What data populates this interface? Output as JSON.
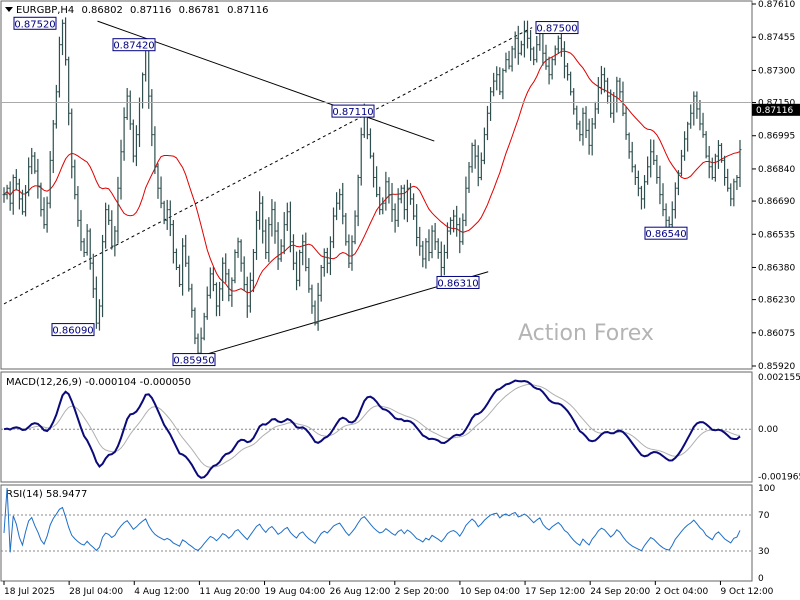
{
  "colors": {
    "candle": "#2f4f4f",
    "ma": "#e00000",
    "macd": "#0a0a7a",
    "signal": "#b0b0b0",
    "rsi": "#1e6fc8",
    "grid": "#888888",
    "label_border": "#000080",
    "label_text": "#000080",
    "watermark": "#b4b4b4"
  },
  "chart_data": [
    {
      "type": "candlestick",
      "title": "EURGBP,H4",
      "ohlc": [
        "0.86802",
        "0.87116",
        "0.86781",
        "0.87116"
      ],
      "watermark": "Action Forex",
      "ylim": [
        0.8592,
        0.8761
      ],
      "y_ticks": [
        "0.87610",
        "0.87455",
        "0.87300",
        "0.87150",
        "0.86995",
        "0.86840",
        "0.86690",
        "0.86535",
        "0.86380",
        "0.86230",
        "0.86075",
        "0.85920"
      ],
      "current_price": "0.87116",
      "price_line": "0.87150",
      "x_tick_labels": [
        "18 Jul 2025",
        "28 Jul 04:00",
        "4 Aug 12:00",
        "11 Aug 20:00",
        "19 Aug 04:00",
        "26 Aug 12:00",
        "2 Sep 20:00",
        "10 Sep 04:00",
        "17 Sep 12:00",
        "24 Sep 20:00",
        "2 Oct 04:00",
        "9 Oct 12:00"
      ],
      "bar_count": 250,
      "close": [
        0.8672,
        0.8675,
        0.8668,
        0.868,
        0.8677,
        0.867,
        0.8664,
        0.8673,
        0.8685,
        0.869,
        0.8683,
        0.8676,
        0.8665,
        0.8658,
        0.8668,
        0.8688,
        0.8705,
        0.872,
        0.8742,
        0.8752,
        0.8735,
        0.871,
        0.8685,
        0.8672,
        0.866,
        0.865,
        0.8645,
        0.8655,
        0.864,
        0.8628,
        0.8612,
        0.862,
        0.865,
        0.8665,
        0.866,
        0.8648,
        0.8655,
        0.8675,
        0.8692,
        0.8708,
        0.8718,
        0.8705,
        0.869,
        0.87,
        0.8715,
        0.8728,
        0.874,
        0.8718,
        0.87,
        0.8685,
        0.8675,
        0.8668,
        0.866,
        0.8665,
        0.8658,
        0.8645,
        0.8638,
        0.863,
        0.8648,
        0.864,
        0.8628,
        0.8618,
        0.8605,
        0.8598,
        0.8605,
        0.8615,
        0.8625,
        0.8635,
        0.863,
        0.862,
        0.8628,
        0.864,
        0.8635,
        0.8625,
        0.8632,
        0.8645,
        0.865,
        0.864,
        0.863,
        0.862,
        0.8632,
        0.8645,
        0.866,
        0.8668,
        0.8655,
        0.8645,
        0.8658,
        0.8665,
        0.8655,
        0.8642,
        0.8648,
        0.8658,
        0.8664,
        0.865,
        0.864,
        0.8632,
        0.8645,
        0.865,
        0.8638,
        0.8628,
        0.862,
        0.8612,
        0.8625,
        0.8638,
        0.8645,
        0.864,
        0.865,
        0.8662,
        0.8668,
        0.8672,
        0.8662,
        0.865,
        0.864,
        0.865,
        0.8662,
        0.868,
        0.87,
        0.8709,
        0.87,
        0.869,
        0.868,
        0.8672,
        0.8665,
        0.8668,
        0.8678,
        0.8672,
        0.8665,
        0.866,
        0.867,
        0.8675,
        0.8665,
        0.8675,
        0.867,
        0.8662,
        0.8652,
        0.8648,
        0.8642,
        0.865,
        0.8645,
        0.8655,
        0.865,
        0.8645,
        0.8638,
        0.8645,
        0.8655,
        0.866,
        0.8662,
        0.8658,
        0.865,
        0.866,
        0.8675,
        0.8685,
        0.8695,
        0.869,
        0.868,
        0.8688,
        0.87,
        0.871,
        0.872,
        0.8725,
        0.8728,
        0.872,
        0.873,
        0.8735,
        0.8732,
        0.874,
        0.8745,
        0.8738,
        0.8742,
        0.8748,
        0.8745,
        0.874,
        0.8735,
        0.8742,
        0.8748,
        0.8738,
        0.8732,
        0.8728,
        0.8735,
        0.874,
        0.8745,
        0.874,
        0.8732,
        0.8728,
        0.872,
        0.8712,
        0.8705,
        0.87,
        0.871,
        0.8702,
        0.8695,
        0.8705,
        0.8712,
        0.8722,
        0.8728,
        0.8725,
        0.8718,
        0.871,
        0.8715,
        0.8725,
        0.872,
        0.871,
        0.87,
        0.8692,
        0.8685,
        0.868,
        0.8675,
        0.867,
        0.8678,
        0.8685,
        0.8692,
        0.8688,
        0.868,
        0.8672,
        0.8665,
        0.866,
        0.8658,
        0.8665,
        0.8675,
        0.8682,
        0.869,
        0.8698,
        0.8705,
        0.871,
        0.8718,
        0.8712,
        0.8705,
        0.87,
        0.869,
        0.8685,
        0.868,
        0.869,
        0.8695,
        0.8688,
        0.868,
        0.8675,
        0.867,
        0.8678,
        0.868,
        0.8693
      ],
      "levels": [
        {
          "label": "0.87520",
          "value": 0.8752
        },
        {
          "label": "0.87420",
          "value": 0.8742
        },
        {
          "label": "0.87110",
          "value": 0.8711
        },
        {
          "label": "0.87500",
          "value": 0.875
        },
        {
          "label": "0.86090",
          "value": 0.8609
        },
        {
          "label": "0.85950",
          "value": 0.8595
        },
        {
          "label": "0.86310",
          "value": 0.8631
        },
        {
          "label": "0.86540",
          "value": 0.8654
        }
      ]
    },
    {
      "type": "line",
      "title": "MACD(12,26,9) -0.000104 -0.000050",
      "ylim": [
        -0.0021,
        0.00224
      ],
      "y_ticks": [
        "0.002155",
        "0.00",
        "-0.001965"
      ]
    },
    {
      "type": "line",
      "title": "RSI(14) 58.9477",
      "ylim": [
        0,
        100
      ],
      "y_ticks": [
        "100",
        "70",
        "30",
        "0"
      ]
    }
  ]
}
